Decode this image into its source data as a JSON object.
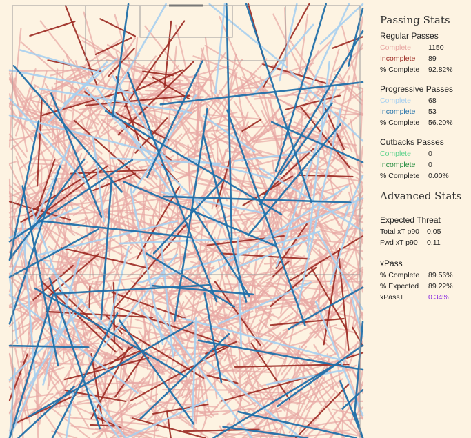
{
  "colors": {
    "background": "#fdf3e2",
    "pitch_line": "#9a9a9a",
    "regular_complete": "#e8a8a4",
    "regular_incomplete": "#9c2a22",
    "progressive_complete": "#a8d0f0",
    "progressive_incomplete": "#2271aa",
    "cutback_complete": "#5fd38d",
    "cutback_incomplete": "#1f8a3a",
    "xpass_plus": "#8a2be2"
  },
  "panel": {
    "title": "Passing Stats",
    "regular": {
      "heading": "Regular Passes",
      "complete_label": "Complete",
      "complete_value": "1150",
      "incomplete_label": "Incomplete",
      "incomplete_value": "89",
      "pct_label": "% Complete",
      "pct_value": "92.82%"
    },
    "progressive": {
      "heading": "Progressive Passes",
      "complete_label": "Complete",
      "complete_value": "68",
      "incomplete_label": "Incomplete",
      "incomplete_value": "53",
      "pct_label": "% Complete",
      "pct_value": "56.20%"
    },
    "cutbacks": {
      "heading": "Cutbacks Passes",
      "complete_label": "Complete",
      "complete_value": "0",
      "incomplete_label": "Incomplete",
      "incomplete_value": "0",
      "pct_label": "% Complete",
      "pct_value": "0.00%"
    },
    "advanced_title": "Advanced Stats",
    "threat": {
      "heading": "Expected Threat",
      "total_label": "Total xT p90",
      "total_value": "0.05",
      "fwd_label": "Fwd xT p90",
      "fwd_value": "0.11"
    },
    "xpass": {
      "heading": "xPass",
      "complete_label": "% Complete",
      "complete_value": "89.56%",
      "expected_label": "% Expected",
      "expected_value": "89.22%",
      "plus_label": "xPass+",
      "plus_value": "0.34%"
    }
  },
  "chart_data": {
    "type": "pass-map",
    "orientation": "vertical, attacking upward",
    "series": [
      {
        "name": "Regular Complete",
        "count": 1150
      },
      {
        "name": "Regular Incomplete",
        "count": 89
      },
      {
        "name": "Progressive Complete",
        "count": 68
      },
      {
        "name": "Progressive Incomplete",
        "count": 53
      },
      {
        "name": "Cutbacks Complete",
        "count": 0
      },
      {
        "name": "Cutbacks Incomplete",
        "count": 0
      }
    ]
  }
}
